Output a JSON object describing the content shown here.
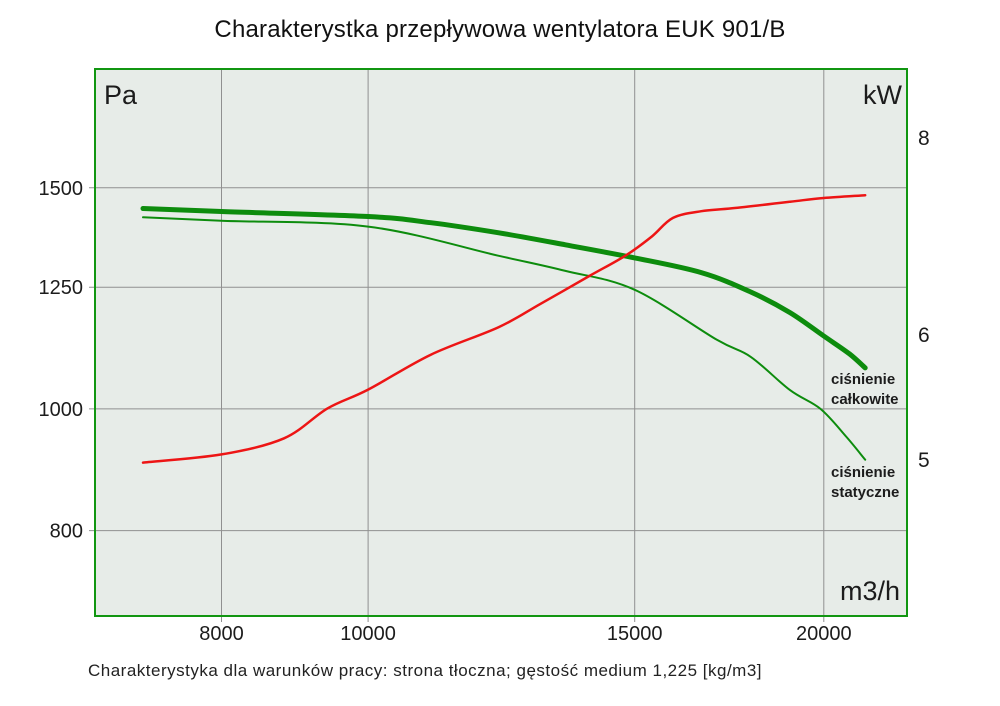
{
  "page": {
    "title": "Charakterystka przepływowa wentylatora EUK 901/B",
    "caption": "Charakterystyka dla warunków pracy: strona tłoczna; gęstość medium 1,225 [kg/m3]"
  },
  "colors": {
    "plot_background": "#e7ece8",
    "plot_border": "#119611",
    "grid": "#909090",
    "text": "#1c1c1c",
    "curve_green": "#0d8c0d",
    "curve_red": "#ed1515"
  },
  "chart_data": {
    "type": "line",
    "title": "Charakterystka przepływowa wentylatora EUK 901/B",
    "grid": "on",
    "legend_position": "annotations-right",
    "x_axis": {
      "unit": "m3/h",
      "scale": "log",
      "range": [
        6600,
        22700
      ],
      "tick_values": [
        8000,
        10000,
        15000,
        20000
      ],
      "tick_labels": [
        "8000",
        "10000",
        "15000",
        "20000"
      ],
      "grid": true
    },
    "y_left": {
      "unit": "Pa",
      "scale": "log",
      "range": [
        684,
        1865
      ],
      "tick_values": [
        800,
        1000,
        1250,
        1500
      ],
      "tick_labels": [
        "800",
        "1000",
        "1250",
        "1500"
      ],
      "grid": true
    },
    "y_right": {
      "unit": "kW",
      "scale": "log",
      "range": [
        3.98,
        8.85
      ],
      "tick_values": [
        5,
        6,
        8
      ],
      "tick_labels": [
        "5",
        "6",
        "8"
      ],
      "grid": false
    },
    "series": [
      {
        "id": "static-pressure",
        "label": "ciśnienie statyczne",
        "axis": "left",
        "color": "#0d8c0d",
        "stroke_width": 2,
        "points": [
          [
            7100,
            1421
          ],
          [
            8000,
            1412
          ],
          [
            10000,
            1397
          ],
          [
            12200,
            1324
          ],
          [
            13500,
            1288
          ],
          [
            15000,
            1244
          ],
          [
            17000,
            1135
          ],
          [
            17900,
            1100
          ],
          [
            19000,
            1035
          ],
          [
            19900,
            1000
          ],
          [
            20700,
            950
          ],
          [
            21300,
            911
          ]
        ]
      },
      {
        "id": "total-pressure",
        "label": "ciśnienie całkowite",
        "axis": "left",
        "color": "#0d8c0d",
        "stroke_width": 5,
        "points": [
          [
            7100,
            1444
          ],
          [
            8000,
            1436
          ],
          [
            10000,
            1423
          ],
          [
            11000,
            1407
          ],
          [
            12200,
            1381
          ],
          [
            13500,
            1351
          ],
          [
            15000,
            1319
          ],
          [
            16600,
            1284
          ],
          [
            17900,
            1239
          ],
          [
            19000,
            1193
          ],
          [
            20000,
            1143
          ],
          [
            20800,
            1106
          ],
          [
            21300,
            1078
          ]
        ]
      },
      {
        "id": "power",
        "label": "",
        "axis": "right",
        "color": "#ed1515",
        "stroke_width": 2.5,
        "points": [
          [
            7100,
            4.98
          ],
          [
            8000,
            5.04
          ],
          [
            8800,
            5.16
          ],
          [
            9400,
            5.39
          ],
          [
            10000,
            5.54
          ],
          [
            11000,
            5.83
          ],
          [
            12200,
            6.07
          ],
          [
            13000,
            6.28
          ],
          [
            14000,
            6.54
          ],
          [
            14800,
            6.74
          ],
          [
            15400,
            6.93
          ],
          [
            15900,
            7.12
          ],
          [
            16600,
            7.19
          ],
          [
            17400,
            7.22
          ],
          [
            19000,
            7.29
          ],
          [
            20000,
            7.33
          ],
          [
            21300,
            7.36
          ]
        ]
      }
    ],
    "annotations": [
      {
        "id": "total-pressure-label",
        "line1": "ciśnienie",
        "line2": "całkowite"
      },
      {
        "id": "static-pressure-label",
        "line1": "ciśnienie",
        "line2": "statyczne"
      }
    ]
  }
}
